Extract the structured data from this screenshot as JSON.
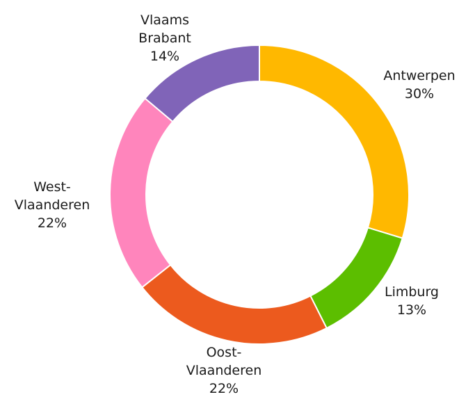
{
  "chart_data": {
    "type": "donut",
    "categories": [
      "Antwerpen",
      "Limburg",
      "Oost-Vlaanderen",
      "West-Vlaanderen",
      "Vlaams Brabant"
    ],
    "values": [
      30,
      13,
      22,
      22,
      14
    ],
    "value_labels": [
      "30%",
      "13%",
      "22%",
      "22%",
      "14%"
    ],
    "colors": [
      "#ffb800",
      "#5cbe00",
      "#ec5a1e",
      "#ff85bc",
      "#8064b8"
    ]
  }
}
